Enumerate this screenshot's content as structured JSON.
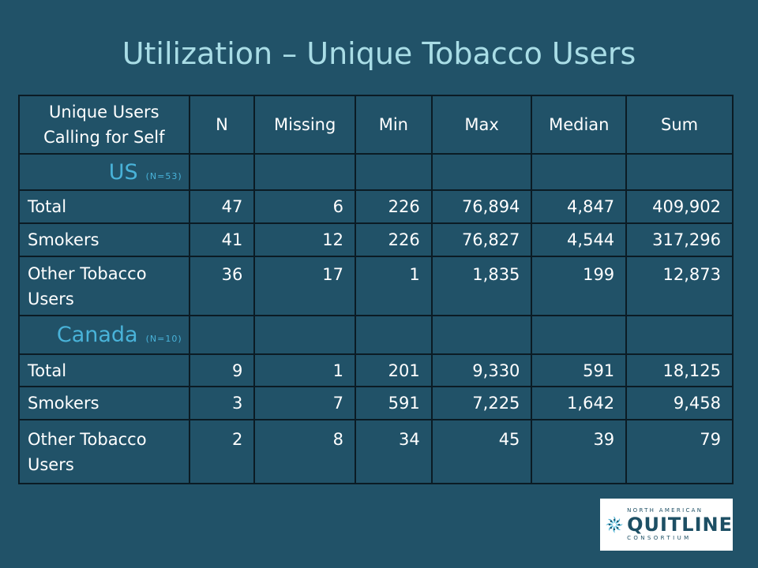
{
  "title": "Utilization – Unique Tobacco Users",
  "table": {
    "headers": [
      "Unique Users Calling for Self",
      "N",
      "Missing",
      "Min",
      "Max",
      "Median",
      "Sum"
    ],
    "sections": [
      {
        "name": "US",
        "n_label": "(N=53)",
        "rows": [
          {
            "label": "Total",
            "values": [
              "47",
              "6",
              "226",
              "76,894",
              "4,847",
              "409,902"
            ]
          },
          {
            "label": "Smokers",
            "values": [
              "41",
              "12",
              "226",
              "76,827",
              "4,544",
              "317,296"
            ]
          },
          {
            "label": "Other Tobacco Users",
            "values": [
              "36",
              "17",
              "1",
              "1,835",
              "199",
              "12,873"
            ]
          }
        ]
      },
      {
        "name": "Canada",
        "n_label": "(N=10)",
        "rows": [
          {
            "label": "Total",
            "values": [
              "9",
              "1",
              "201",
              "9,330",
              "591",
              "18,125"
            ]
          },
          {
            "label": "Smokers",
            "values": [
              "3",
              "7",
              "591",
              "7,225",
              "1,642",
              "9,458"
            ]
          },
          {
            "label": "Other Tobacco Users",
            "values": [
              "2",
              "8",
              "34",
              "45",
              "39",
              "79"
            ]
          }
        ]
      }
    ]
  },
  "logo": {
    "top_text": "NORTH AMERICAN",
    "main_text": "QUITLINE",
    "bottom_text": "CONSORTIUM",
    "icon": "pinwheel-logo-icon"
  },
  "colors": {
    "background": "#215268",
    "title": "#a9dde6",
    "section_label": "#49b3d9",
    "cell_text": "#ffffff",
    "border": "#0b1b24"
  }
}
